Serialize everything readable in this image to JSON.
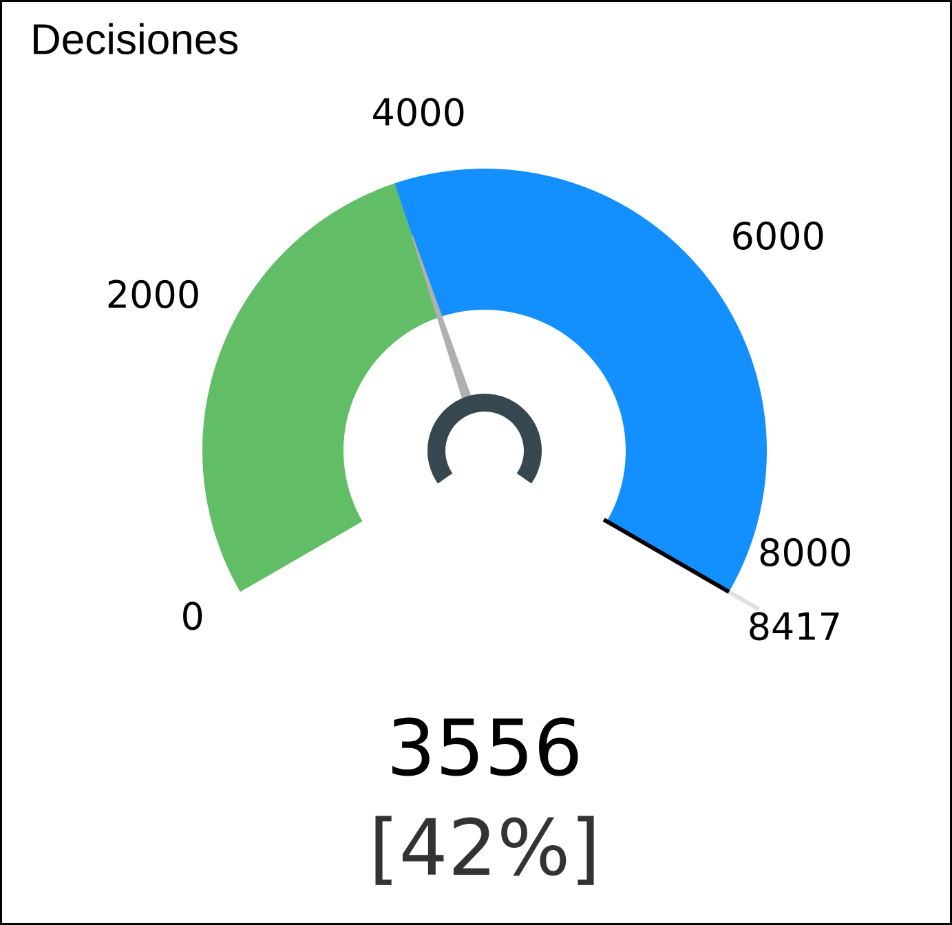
{
  "chart_data": {
    "type": "gauge",
    "title": "Decisiones",
    "min": 0,
    "max": 8417,
    "value": 3556,
    "percent": 42,
    "percent_label": "[42%]",
    "ticks": [
      0,
      2000,
      4000,
      6000,
      8000
    ],
    "value_color": "#62bd67",
    "rest_color": "#148ffe",
    "needle_color": "#b0b0b0"
  }
}
